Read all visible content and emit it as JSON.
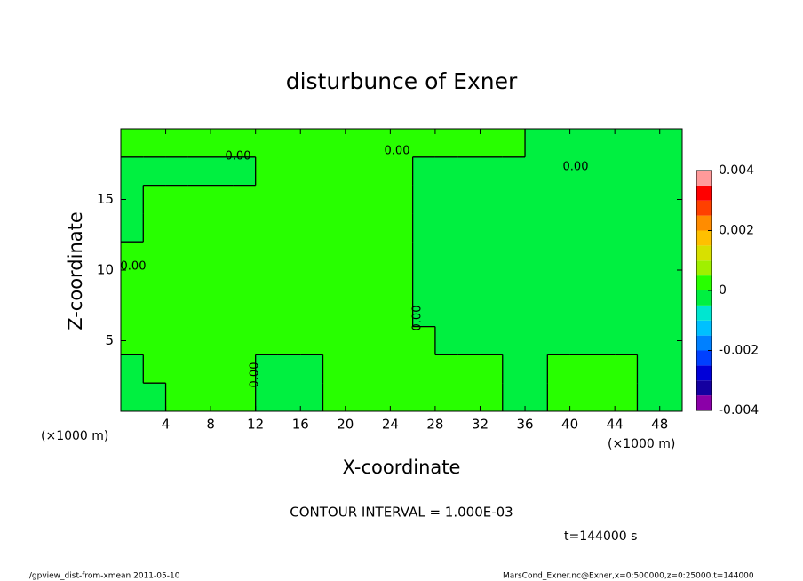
{
  "chart_data": {
    "type": "contour",
    "title": "disturbunce of Exner",
    "xlabel": "X-coordinate",
    "ylabel": "Z-coordinate",
    "x_unit_left": "(×1000 m)",
    "x_unit_right": "(×1000 m)",
    "xlim": [
      0,
      50
    ],
    "ylim": [
      0,
      20
    ],
    "xticks": [
      4,
      8,
      12,
      16,
      20,
      24,
      28,
      32,
      36,
      40,
      44,
      48
    ],
    "yticks": [
      5,
      10,
      15
    ],
    "x": [
      1,
      3,
      5,
      7,
      9,
      11,
      13,
      15,
      17,
      19,
      21,
      23,
      25,
      27,
      29,
      31,
      33,
      35,
      37,
      39,
      41,
      43,
      45,
      47,
      49
    ],
    "y": [
      1,
      3,
      5,
      7,
      9,
      11,
      13,
      15,
      17,
      19
    ],
    "z": [
      [
        -0.0003,
        -0.0003,
        0.0003,
        0.0003,
        0.0003,
        0.0003,
        -0.0003,
        -0.0003,
        -0.0003,
        0.0003,
        0.0003,
        0.0003,
        0.0003,
        0.0003,
        0.0003,
        0.0003,
        0.0003,
        -0.0003,
        -0.0003,
        0.0003,
        0.0003,
        0.0003,
        0.0003,
        -0.0003,
        -0.0003
      ],
      [
        -0.0003,
        0.0003,
        0.0003,
        0.0003,
        0.0003,
        0.0003,
        -0.0003,
        -0.0003,
        -0.0003,
        0.0003,
        0.0003,
        0.0003,
        0.0003,
        0.0003,
        0.0003,
        0.0003,
        0.0003,
        -0.0003,
        -0.0003,
        0.0003,
        0.0003,
        0.0003,
        0.0003,
        -0.0003,
        -0.0003
      ],
      [
        0.0003,
        0.0003,
        0.0003,
        0.0003,
        0.0003,
        0.0003,
        0.0003,
        0.0003,
        0.0003,
        0.0003,
        0.0003,
        0.0003,
        0.0003,
        0.0003,
        -0.0003,
        -0.0003,
        -0.0003,
        -0.0003,
        -0.0003,
        -0.0003,
        -0.0003,
        -0.0003,
        -0.0003,
        -0.0003,
        -0.0003
      ],
      [
        0.0003,
        0.0003,
        0.0003,
        0.0003,
        0.0003,
        0.0003,
        0.0003,
        0.0003,
        0.0003,
        0.0003,
        0.0003,
        0.0003,
        0.0003,
        -0.0003,
        -0.0003,
        -0.0003,
        -0.0003,
        -0.0003,
        -0.0003,
        -0.0003,
        -0.0003,
        -0.0003,
        -0.0003,
        -0.0003,
        -0.0003
      ],
      [
        0.0003,
        0.0003,
        0.0003,
        0.0003,
        0.0003,
        0.0003,
        0.0003,
        0.0003,
        0.0003,
        0.0003,
        0.0003,
        0.0003,
        0.0003,
        -0.0003,
        -0.0003,
        -0.0003,
        -0.0003,
        -0.0003,
        -0.0003,
        -0.0003,
        -0.0003,
        -0.0003,
        -0.0003,
        -0.0003,
        -0.0003
      ],
      [
        0.0003,
        0.0003,
        0.0003,
        0.0003,
        0.0003,
        0.0003,
        0.0003,
        0.0003,
        0.0003,
        0.0003,
        0.0003,
        0.0003,
        0.0003,
        -0.0003,
        -0.0003,
        -0.0003,
        -0.0003,
        -0.0003,
        -0.0003,
        -0.0003,
        -0.0003,
        -0.0003,
        -0.0003,
        -0.0003,
        -0.0003
      ],
      [
        -0.0003,
        0.0003,
        0.0003,
        0.0003,
        0.0003,
        0.0003,
        0.0003,
        0.0003,
        0.0003,
        0.0003,
        0.0003,
        0.0003,
        0.0003,
        -0.0003,
        -0.0003,
        -0.0003,
        -0.0003,
        -0.0003,
        -0.0003,
        -0.0003,
        -0.0003,
        -0.0003,
        -0.0003,
        -0.0003,
        -0.0003
      ],
      [
        -0.0003,
        0.0003,
        0.0003,
        0.0003,
        0.0003,
        0.0003,
        0.0003,
        0.0003,
        0.0003,
        0.0003,
        0.0003,
        0.0003,
        0.0003,
        -0.0003,
        -0.0003,
        -0.0003,
        -0.0003,
        -0.0003,
        -0.0003,
        -0.0003,
        -0.0003,
        -0.0003,
        -0.0003,
        -0.0003,
        -0.0003
      ],
      [
        -0.0003,
        -0.0003,
        -0.0003,
        -0.0003,
        -0.0003,
        -0.0003,
        0.0003,
        0.0003,
        0.0003,
        0.0003,
        0.0003,
        0.0003,
        0.0003,
        -0.0003,
        -0.0003,
        -0.0003,
        -0.0003,
        -0.0003,
        -0.0003,
        -0.0003,
        -0.0003,
        -0.0003,
        -0.0003,
        -0.0003,
        -0.0003
      ],
      [
        0.0003,
        0.0003,
        0.0003,
        0.0003,
        0.0003,
        0.0003,
        0.0003,
        0.0003,
        0.0003,
        0.0003,
        0.0003,
        0.0003,
        0.0003,
        0.0003,
        0.0003,
        0.0003,
        0.0003,
        0.0003,
        -0.0003,
        -0.0003,
        -0.0003,
        -0.0003,
        -0.0003,
        -0.0003,
        -0.0003
      ]
    ],
    "contour_level": 0,
    "contour_labels": [
      "0.00",
      "0.00",
      "0.00",
      "0.00",
      "0.00",
      "0.00"
    ],
    "colorbar": {
      "levels": [
        -0.004,
        -0.0035,
        -0.003,
        -0.0025,
        -0.002,
        -0.0015,
        -0.001,
        -0.0005,
        0,
        0.0005,
        0.001,
        0.0015,
        0.002,
        0.0025,
        0.003,
        0.0035,
        0.004
      ],
      "colors": [
        "#8b00a8",
        "#1400a0",
        "#0000d8",
        "#0040ff",
        "#0080ff",
        "#00c0ff",
        "#00e6d0",
        "#00f040",
        "#28ff00",
        "#a0f000",
        "#d8e000",
        "#ffc000",
        "#ff8c00",
        "#ff4000",
        "#ff0000",
        "#ff9a9a"
      ],
      "ticks": [
        -0.004,
        -0.002,
        0,
        0.002,
        0.004
      ]
    },
    "contour_interval": "CONTOUR INTERVAL = 1.000E-03",
    "time": "t=144000 s",
    "footer_left": "./gpview_dist-from-xmean  2011-05-10",
    "footer_right": "MarsCond_Exner.nc@Exner,x=0:500000,z=0:25000,t=144000"
  }
}
